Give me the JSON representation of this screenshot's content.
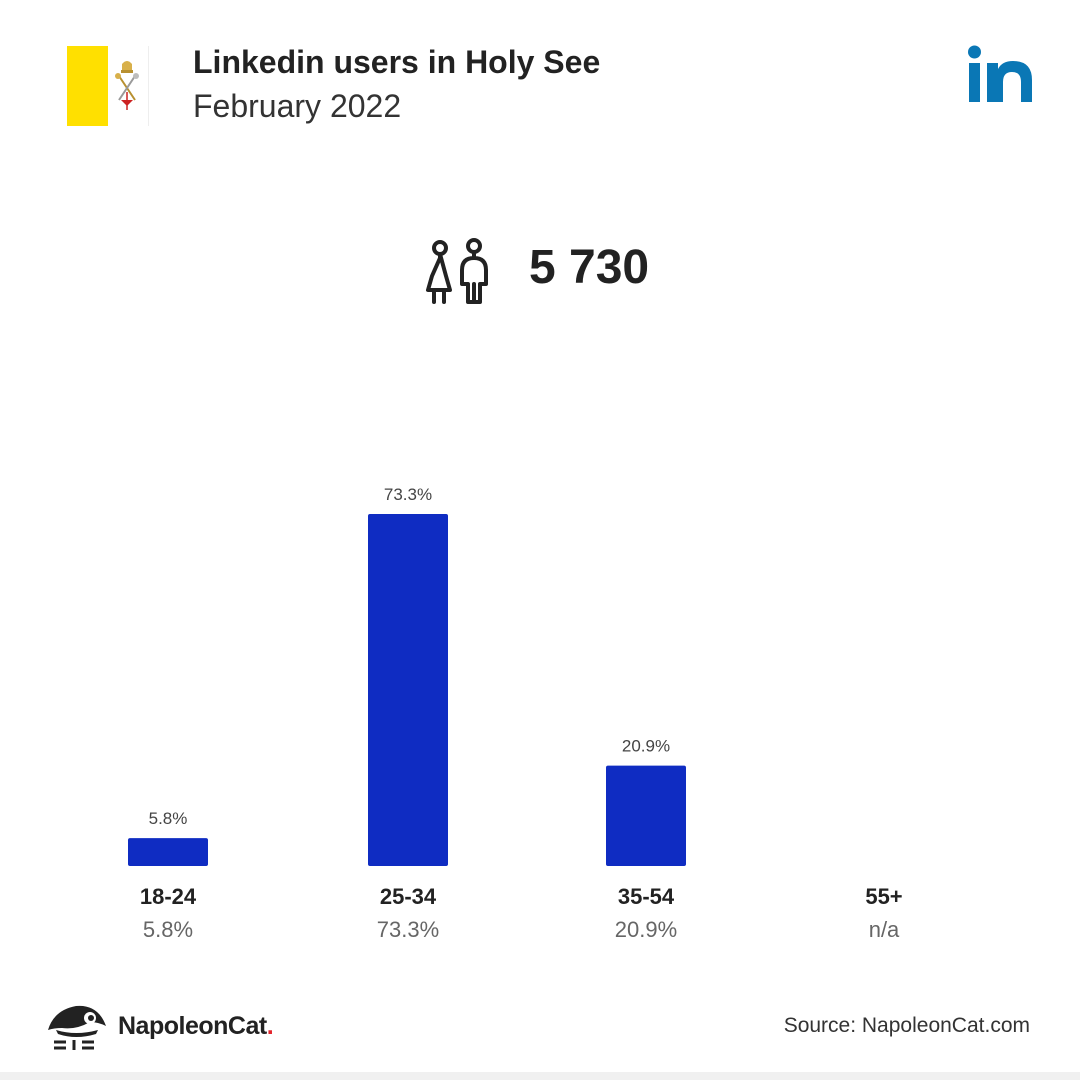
{
  "header": {
    "title": "Linkedin users in Holy See",
    "subtitle": "February 2022"
  },
  "total": {
    "value": "5 730",
    "icon": "people-icon"
  },
  "colors": {
    "bar": "#0f2cc2",
    "linkedin": "#0a77b5",
    "flag_yellow": "#ffe000",
    "brand_dot": "#e3242b"
  },
  "chart_data": {
    "type": "bar",
    "categories": [
      "18-24",
      "25-34",
      "35-54",
      "55+"
    ],
    "values": [
      5.8,
      73.3,
      20.9,
      null
    ],
    "value_labels": [
      "5.8%",
      "73.3%",
      "20.9%",
      "n/a"
    ],
    "ylim": [
      0,
      73.3
    ],
    "grid": false
  },
  "footer": {
    "brand_name": "NapoleonCat",
    "brand_dot": ".",
    "source": "Source: NapoleonCat.com"
  }
}
